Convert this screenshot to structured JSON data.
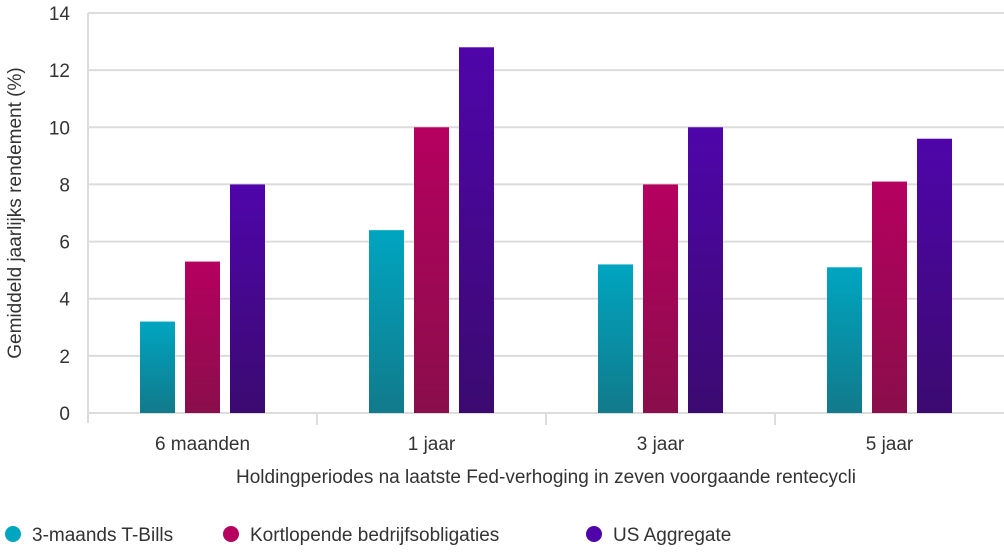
{
  "chart_data": {
    "type": "bar",
    "title": "",
    "xlabel": "Holdingperiodes na laatste Fed-verhoging in zeven voorgaande rentecycli",
    "ylabel": "Gemiddeld jaarlijks rendement (%)",
    "ylim": [
      0,
      14
    ],
    "yticks": [
      0,
      2,
      4,
      6,
      8,
      10,
      12,
      14
    ],
    "grid": true,
    "legend_position": "bottom-left",
    "categories": [
      "6 maanden",
      "1 jaar",
      "3 jaar",
      "5 jaar"
    ],
    "series": [
      {
        "name": "3-maands T-Bills",
        "color": "#00a5c0",
        "color_dark": "#117a8b",
        "values": [
          3.2,
          6.4,
          5.2,
          5.1
        ]
      },
      {
        "name": "Kortlopende bedrijfsobligaties",
        "color": "#b5005f",
        "color_dark": "#8a0e4b",
        "values": [
          5.3,
          10.0,
          8.0,
          8.1
        ]
      },
      {
        "name": "US Aggregate",
        "color": "#4f05aa",
        "color_dark": "#3b0a70",
        "values": [
          8.0,
          12.8,
          10.0,
          9.6
        ]
      }
    ]
  }
}
